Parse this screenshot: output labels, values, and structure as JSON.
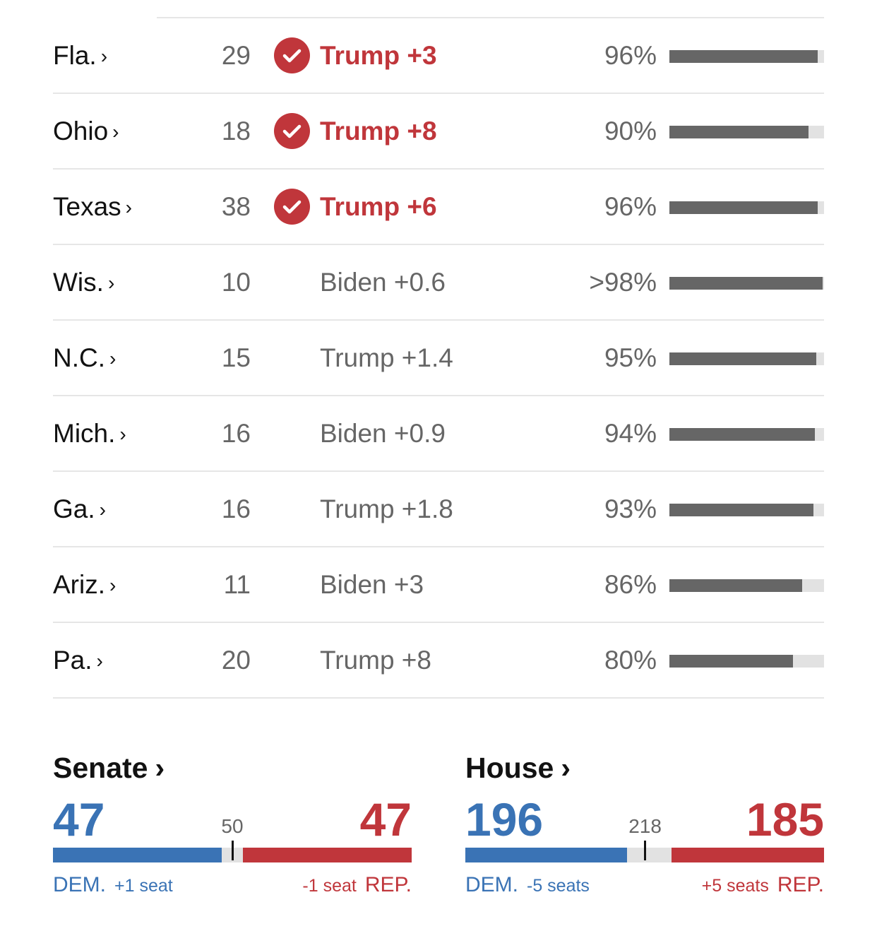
{
  "colors": {
    "dem": "#3a73b5",
    "rep": "#c0363b",
    "bar": "#666666",
    "track": "#e2e2e2"
  },
  "states": [
    {
      "name": "Fla.",
      "ev": "29",
      "margin": "Trump +3",
      "called": true,
      "reporting": "96%",
      "reporting_value": 96
    },
    {
      "name": "Ohio",
      "ev": "18",
      "margin": "Trump +8",
      "called": true,
      "reporting": "90%",
      "reporting_value": 90
    },
    {
      "name": "Texas",
      "ev": "38",
      "margin": "Trump +6",
      "called": true,
      "reporting": "96%",
      "reporting_value": 96
    },
    {
      "name": "Wis.",
      "ev": "10",
      "margin": "Biden +0.6",
      "called": false,
      "reporting": ">98%",
      "reporting_value": 99
    },
    {
      "name": "N.C.",
      "ev": "15",
      "margin": "Trump +1.4",
      "called": false,
      "reporting": "95%",
      "reporting_value": 95
    },
    {
      "name": "Mich.",
      "ev": "16",
      "margin": "Biden +0.9",
      "called": false,
      "reporting": "94%",
      "reporting_value": 94
    },
    {
      "name": "Ga.",
      "ev": "16",
      "margin": "Trump +1.8",
      "called": false,
      "reporting": "93%",
      "reporting_value": 93
    },
    {
      "name": "Ariz.",
      "ev": "11",
      "margin": "Biden +3",
      "called": false,
      "reporting": "86%",
      "reporting_value": 86
    },
    {
      "name": "Pa.",
      "ev": "20",
      "margin": "Trump +8",
      "called": false,
      "reporting": "80%",
      "reporting_value": 80
    }
  ],
  "senate": {
    "title": "Senate",
    "dem": "47",
    "rep": "47",
    "mid": "50",
    "dem_seats": 47,
    "rep_seats": 47,
    "total_seats": 100,
    "majority": 50,
    "dem_label": "DEM.",
    "rep_label": "REP.",
    "dem_change": "+1 seat",
    "rep_change": "-1 seat"
  },
  "house": {
    "title": "House",
    "dem": "196",
    "rep": "185",
    "mid": "218",
    "dem_seats": 196,
    "rep_seats": 185,
    "total_seats": 435,
    "majority": 218,
    "dem_label": "DEM.",
    "rep_label": "REP.",
    "dem_change": "-5 seats",
    "rep_change": "+5 seats"
  }
}
